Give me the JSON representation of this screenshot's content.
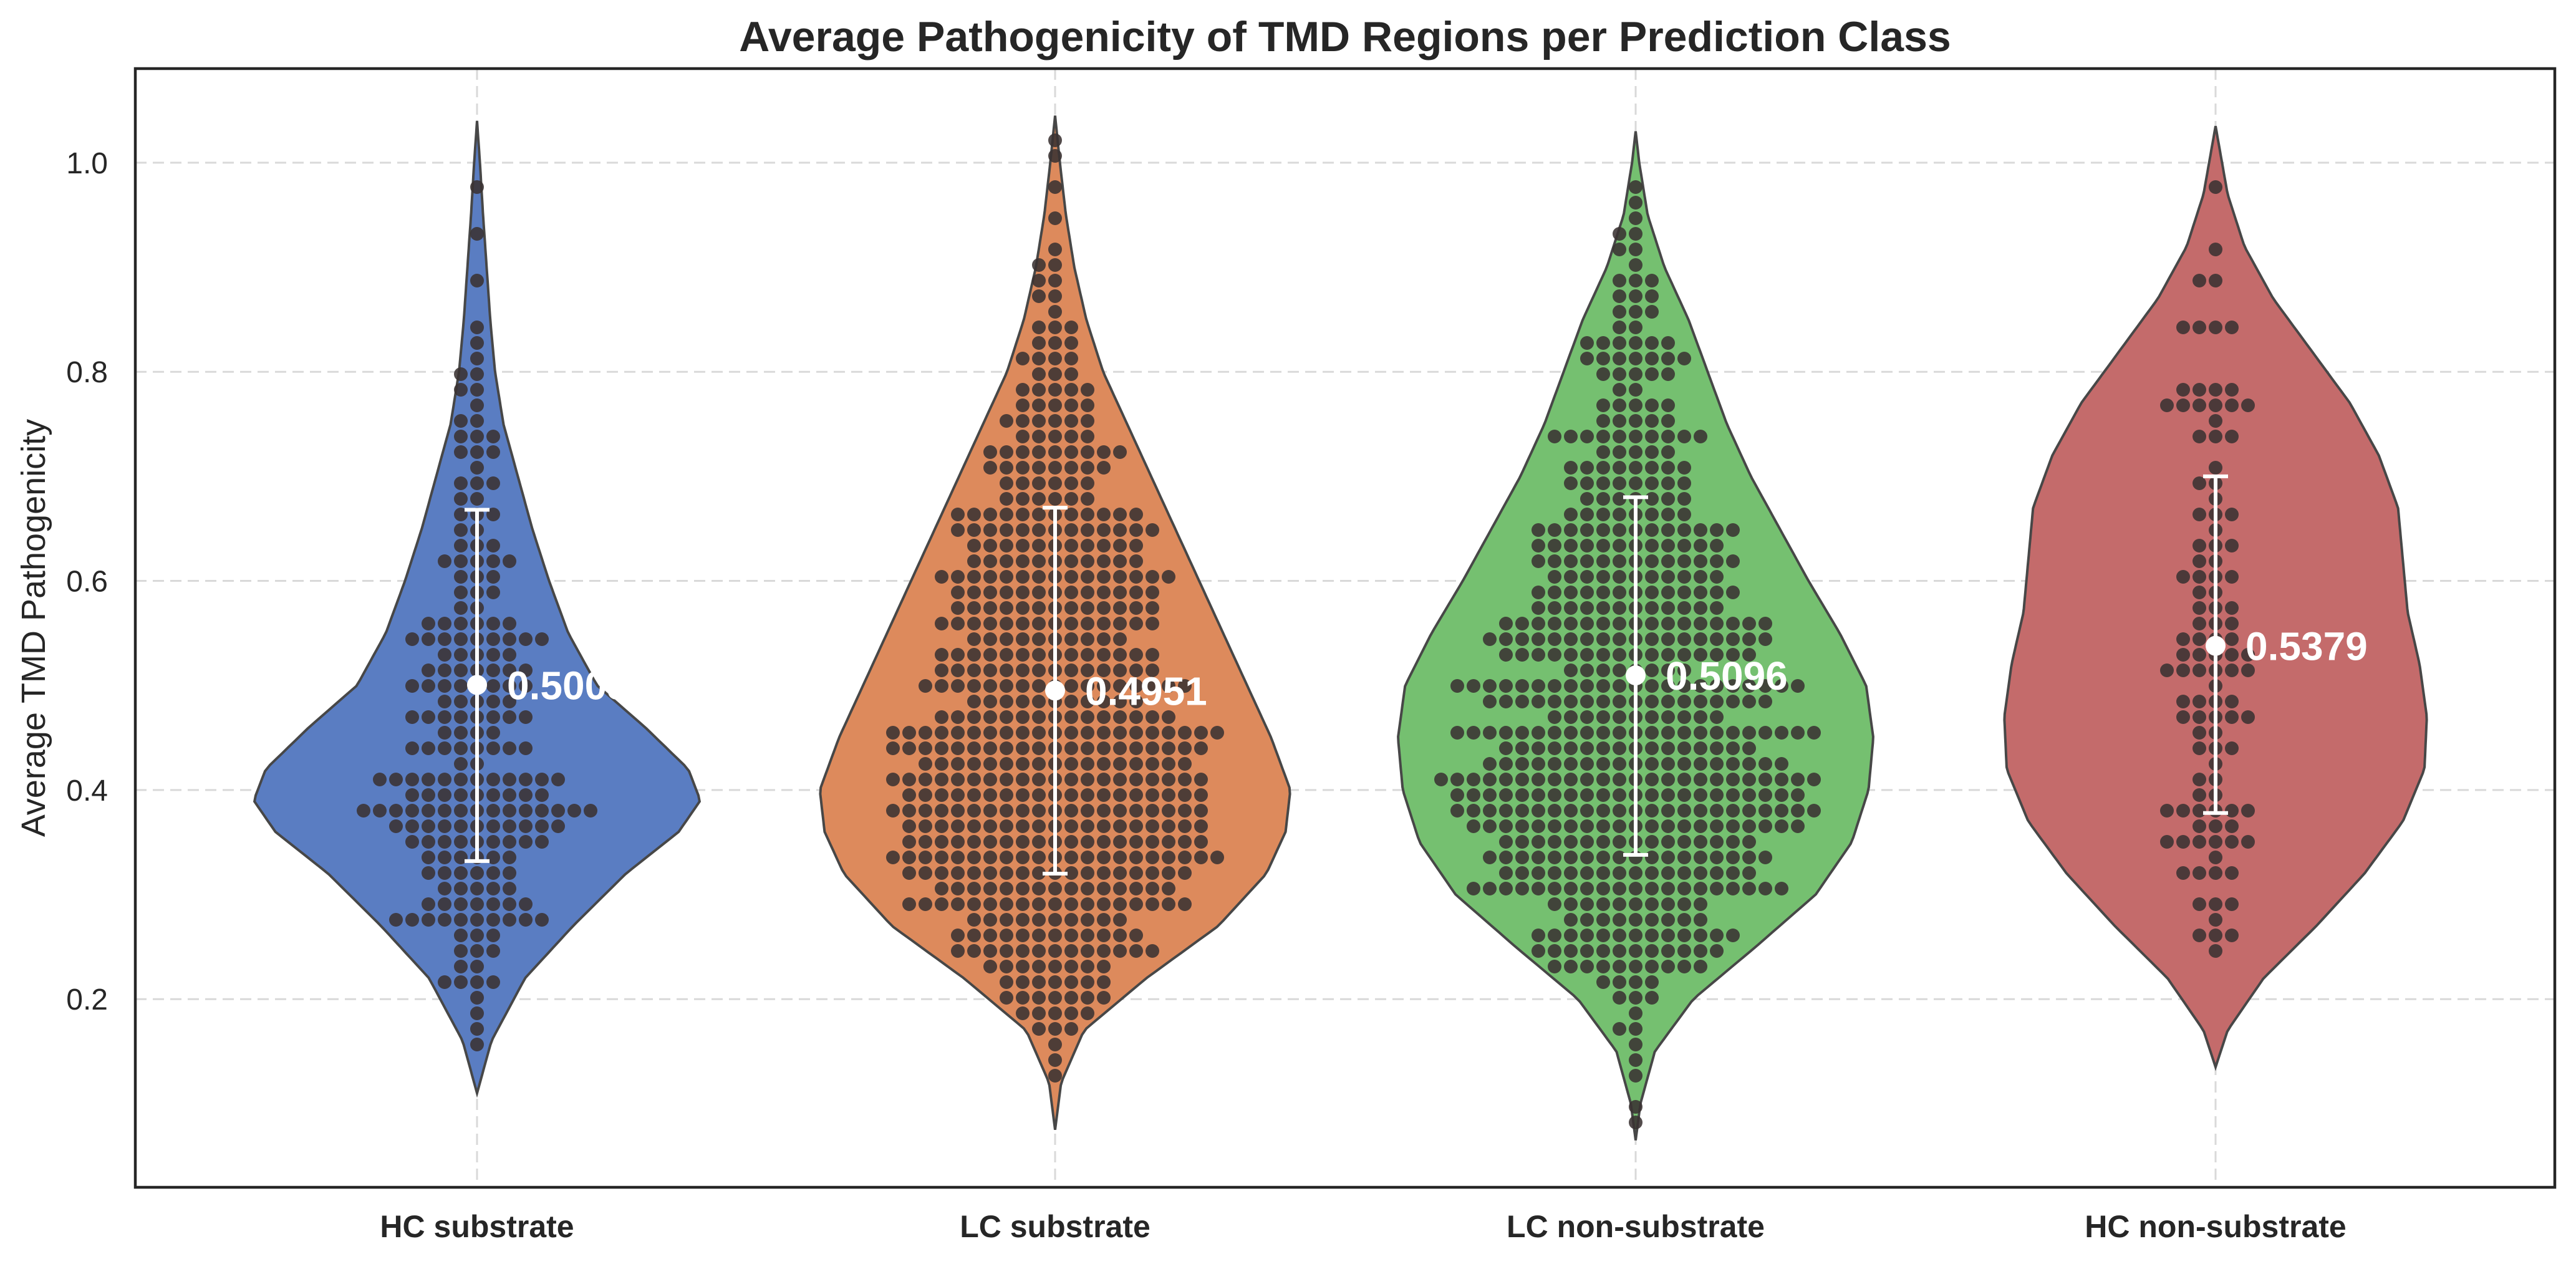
{
  "chart_data": {
    "type": "violin",
    "title": "Average Pathogenicity of TMD Regions per Prediction Class",
    "xlabel": "",
    "ylabel": "Average TMD Pathogenicity",
    "ylim": [
      0.02,
      1.09
    ],
    "yticks": [
      0.2,
      0.4,
      0.6,
      0.8,
      1.0
    ],
    "ytick_labels": [
      "0.2",
      "0.4",
      "0.6",
      "0.8",
      "1.0"
    ],
    "grid": true,
    "categories": [
      "HC substrate",
      "LC substrate",
      "LC non-substrate",
      "HC non-substrate"
    ],
    "series": [
      {
        "category": "HC substrate",
        "color": "#5a7dc2",
        "mean": 0.5005,
        "mean_label": "0.5005",
        "sd_low": 0.332,
        "sd_high": 0.668,
        "violin_min": 0.11,
        "violin_max": 1.04,
        "density": [
          [
            0.11,
            0.0
          ],
          [
            0.16,
            0.06
          ],
          [
            0.22,
            0.2
          ],
          [
            0.27,
            0.4
          ],
          [
            0.32,
            0.62
          ],
          [
            0.36,
            0.84
          ],
          [
            0.39,
            0.93
          ],
          [
            0.42,
            0.88
          ],
          [
            0.46,
            0.7
          ],
          [
            0.5,
            0.5
          ],
          [
            0.55,
            0.38
          ],
          [
            0.6,
            0.3
          ],
          [
            0.65,
            0.23
          ],
          [
            0.7,
            0.17
          ],
          [
            0.75,
            0.11
          ],
          [
            0.8,
            0.075
          ],
          [
            0.85,
            0.055
          ],
          [
            0.9,
            0.04
          ],
          [
            0.95,
            0.025
          ],
          [
            1.0,
            0.012
          ],
          [
            1.04,
            0.0
          ]
        ],
        "point_count": 220
      },
      {
        "category": "LC substrate",
        "color": "#dd8a5c",
        "mean": 0.4951,
        "mean_label": "0.4951",
        "sd_low": 0.32,
        "sd_high": 0.67,
        "violin_min": 0.075,
        "violin_max": 1.045,
        "density": [
          [
            0.075,
            0.0
          ],
          [
            0.12,
            0.025
          ],
          [
            0.17,
            0.12
          ],
          [
            0.22,
            0.38
          ],
          [
            0.27,
            0.68
          ],
          [
            0.32,
            0.88
          ],
          [
            0.36,
            0.96
          ],
          [
            0.4,
            0.98
          ],
          [
            0.45,
            0.9
          ],
          [
            0.5,
            0.8
          ],
          [
            0.55,
            0.7
          ],
          [
            0.6,
            0.6
          ],
          [
            0.65,
            0.5
          ],
          [
            0.7,
            0.4
          ],
          [
            0.75,
            0.3
          ],
          [
            0.8,
            0.2
          ],
          [
            0.85,
            0.13
          ],
          [
            0.9,
            0.08
          ],
          [
            0.95,
            0.045
          ],
          [
            1.0,
            0.02
          ],
          [
            1.045,
            0.0
          ]
        ],
        "point_count": 560
      },
      {
        "category": "LC non-substrate",
        "color": "#75c070",
        "mean": 0.5096,
        "mean_label": "0.5096",
        "sd_low": 0.338,
        "sd_high": 0.68,
        "violin_min": 0.065,
        "violin_max": 1.03,
        "density": [
          [
            0.065,
            0.0
          ],
          [
            0.1,
            0.02
          ],
          [
            0.15,
            0.08
          ],
          [
            0.2,
            0.24
          ],
          [
            0.25,
            0.5
          ],
          [
            0.3,
            0.75
          ],
          [
            0.35,
            0.9
          ],
          [
            0.4,
            0.97
          ],
          [
            0.45,
            0.99
          ],
          [
            0.5,
            0.96
          ],
          [
            0.55,
            0.85
          ],
          [
            0.6,
            0.72
          ],
          [
            0.65,
            0.6
          ],
          [
            0.7,
            0.48
          ],
          [
            0.75,
            0.38
          ],
          [
            0.8,
            0.3
          ],
          [
            0.85,
            0.22
          ],
          [
            0.9,
            0.12
          ],
          [
            0.95,
            0.05
          ],
          [
            1.0,
            0.015
          ],
          [
            1.03,
            0.0
          ]
        ],
        "point_count": 580
      },
      {
        "category": "HC non-substrate",
        "color": "#c46b6b",
        "mean": 0.5379,
        "mean_label": "0.5379",
        "sd_low": 0.378,
        "sd_high": 0.7,
        "violin_min": 0.135,
        "violin_max": 1.035,
        "density": [
          [
            0.135,
            0.0
          ],
          [
            0.17,
            0.05
          ],
          [
            0.22,
            0.2
          ],
          [
            0.27,
            0.42
          ],
          [
            0.32,
            0.62
          ],
          [
            0.37,
            0.78
          ],
          [
            0.42,
            0.87
          ],
          [
            0.47,
            0.88
          ],
          [
            0.52,
            0.85
          ],
          [
            0.57,
            0.8
          ],
          [
            0.62,
            0.78
          ],
          [
            0.67,
            0.76
          ],
          [
            0.72,
            0.68
          ],
          [
            0.77,
            0.56
          ],
          [
            0.82,
            0.4
          ],
          [
            0.87,
            0.24
          ],
          [
            0.92,
            0.12
          ],
          [
            0.97,
            0.05
          ],
          [
            1.035,
            0.0
          ]
        ],
        "point_count": 110
      }
    ]
  }
}
